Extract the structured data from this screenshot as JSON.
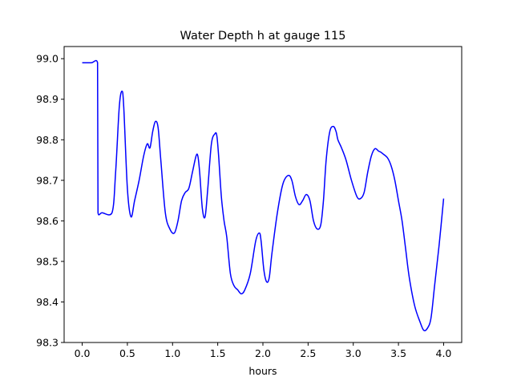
{
  "chart_data": {
    "type": "line",
    "title": "Water Depth h at gauge 115",
    "xlabel": "hours",
    "ylabel": "",
    "xlim": [
      -0.2,
      4.2
    ],
    "ylim": [
      98.3,
      99.03
    ],
    "xticks": [
      0.0,
      0.5,
      1.0,
      1.5,
      2.0,
      2.5,
      3.0,
      3.5,
      4.0
    ],
    "xtick_labels": [
      "0.0",
      "0.5",
      "1.0",
      "1.5",
      "2.0",
      "2.5",
      "3.0",
      "3.5",
      "4.0"
    ],
    "yticks": [
      98.3,
      98.4,
      98.5,
      98.6,
      98.7,
      98.8,
      98.9,
      99.0
    ],
    "ytick_labels": [
      "98.3",
      "98.4",
      "98.5",
      "98.6",
      "98.7",
      "98.8",
      "98.9",
      "99.0"
    ],
    "grid": false,
    "series": [
      {
        "color": "#0000ff",
        "x": [
          0.0,
          0.1,
          0.17,
          0.175,
          0.22,
          0.33,
          0.37,
          0.41,
          0.44,
          0.46,
          0.5,
          0.54,
          0.58,
          0.63,
          0.68,
          0.72,
          0.75,
          0.78,
          0.81,
          0.84,
          0.87,
          0.92,
          0.97,
          1.02,
          1.06,
          1.1,
          1.14,
          1.18,
          1.22,
          1.26,
          1.28,
          1.3,
          1.33,
          1.36,
          1.39,
          1.43,
          1.47,
          1.49,
          1.51,
          1.54,
          1.57,
          1.6,
          1.64,
          1.68,
          1.72,
          1.76,
          1.8,
          1.86,
          1.92,
          1.96,
          1.98,
          2.01,
          2.04,
          2.07,
          2.1,
          2.16,
          2.22,
          2.28,
          2.32,
          2.36,
          2.4,
          2.44,
          2.48,
          2.52,
          2.56,
          2.6,
          2.64,
          2.67,
          2.7,
          2.74,
          2.78,
          2.81,
          2.83,
          2.87,
          2.92,
          2.98,
          3.04,
          3.08,
          3.12,
          3.16,
          3.2,
          3.24,
          3.28,
          3.3,
          3.33,
          3.38,
          3.42,
          3.46,
          3.5,
          3.54,
          3.58,
          3.62,
          3.68,
          3.74,
          3.78,
          3.82,
          3.86,
          3.9,
          3.95,
          4.0
        ],
        "y": [
          98.99,
          98.99,
          98.99,
          98.62,
          98.62,
          98.62,
          98.72,
          98.88,
          98.92,
          98.88,
          98.68,
          98.61,
          98.65,
          98.7,
          98.76,
          98.79,
          98.78,
          98.82,
          98.845,
          98.83,
          98.75,
          98.62,
          98.58,
          98.57,
          98.6,
          98.65,
          98.67,
          98.68,
          98.72,
          98.76,
          98.76,
          98.72,
          98.63,
          98.61,
          98.68,
          98.79,
          98.815,
          98.81,
          98.76,
          98.66,
          98.6,
          98.56,
          98.47,
          98.44,
          98.43,
          98.42,
          98.43,
          98.47,
          98.55,
          98.57,
          98.55,
          98.48,
          98.45,
          98.46,
          98.52,
          98.62,
          98.69,
          98.712,
          98.7,
          98.66,
          98.64,
          98.65,
          98.665,
          98.65,
          98.6,
          98.58,
          98.59,
          98.65,
          98.75,
          98.82,
          98.833,
          98.82,
          98.8,
          98.78,
          98.75,
          98.7,
          98.66,
          98.655,
          98.67,
          98.72,
          98.76,
          98.778,
          98.772,
          98.77,
          98.765,
          98.755,
          98.735,
          98.7,
          98.65,
          98.6,
          98.53,
          98.46,
          98.39,
          98.35,
          98.33,
          98.335,
          98.36,
          98.44,
          98.54,
          98.655
        ]
      }
    ]
  }
}
